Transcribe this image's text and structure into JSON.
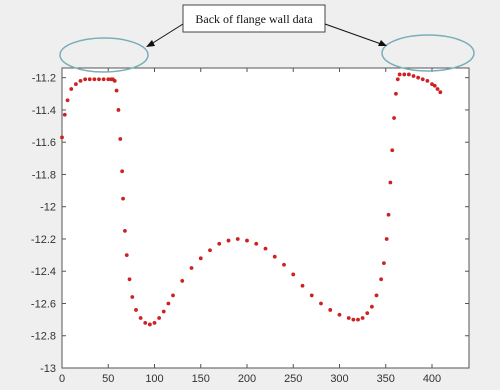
{
  "chart_data": {
    "type": "scatter",
    "title": "",
    "xlabel": "",
    "ylabel": "",
    "xlim": [
      0,
      440
    ],
    "ylim": [
      -13.0,
      -11.14
    ],
    "xticks": [
      0,
      50,
      100,
      150,
      200,
      250,
      300,
      350,
      400
    ],
    "yticks": [
      -11.2,
      -11.4,
      -11.6,
      -11.8,
      -12,
      -12.2,
      -12.4,
      -12.6,
      -12.8,
      -13
    ],
    "grid": false,
    "marker_color": "#cc2222",
    "annotation": {
      "text": "Back of flange wall data",
      "targets": [
        "left",
        "right"
      ]
    },
    "series": [
      {
        "x": [
          0,
          3,
          6,
          10,
          15,
          20,
          25,
          30,
          35,
          40,
          45,
          50,
          53,
          55,
          57,
          59,
          61,
          63,
          65,
          66,
          68,
          70,
          73,
          76,
          80,
          85,
          90,
          95,
          100,
          105,
          110,
          115,
          120,
          130,
          140,
          150,
          160,
          170,
          180,
          190,
          200,
          210,
          220,
          230,
          240,
          250,
          260,
          270,
          280,
          290,
          300,
          310,
          315,
          320,
          325,
          330,
          335,
          340,
          345,
          348,
          351,
          353,
          355,
          357,
          359,
          361,
          363,
          365,
          370,
          375,
          380,
          385,
          390,
          395,
          400,
          403,
          406,
          409
        ],
        "y": [
          -11.57,
          -11.43,
          -11.34,
          -11.27,
          -11.24,
          -11.22,
          -11.21,
          -11.21,
          -11.21,
          -11.21,
          -11.21,
          -11.21,
          -11.21,
          -11.21,
          -11.22,
          -11.28,
          -11.4,
          -11.58,
          -11.78,
          -11.95,
          -12.15,
          -12.3,
          -12.45,
          -12.56,
          -12.64,
          -12.69,
          -12.72,
          -12.73,
          -12.72,
          -12.69,
          -12.65,
          -12.6,
          -12.55,
          -12.46,
          -12.38,
          -12.32,
          -12.27,
          -12.23,
          -12.21,
          -12.2,
          -12.21,
          -12.23,
          -12.26,
          -12.31,
          -12.36,
          -12.42,
          -12.49,
          -12.55,
          -12.6,
          -12.64,
          -12.67,
          -12.69,
          -12.7,
          -12.7,
          -12.69,
          -12.66,
          -12.62,
          -12.55,
          -12.45,
          -12.35,
          -12.2,
          -12.05,
          -11.85,
          -11.65,
          -11.45,
          -11.3,
          -11.21,
          -11.18,
          -11.18,
          -11.18,
          -11.19,
          -11.2,
          -11.21,
          -11.22,
          -11.24,
          -11.25,
          -11.27,
          -11.29
        ]
      }
    ]
  }
}
